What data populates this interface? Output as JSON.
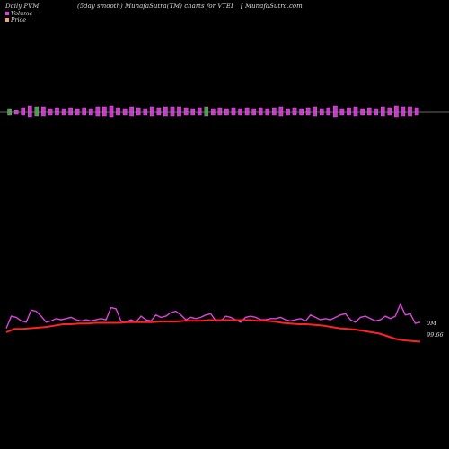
{
  "header": {
    "left": "Daily PVM",
    "middle": "(5day smooth) MunafaSutra(TM) charts for VTEI",
    "right": "[ MunafaSutra.com"
  },
  "legend": [
    {
      "label": "Volume",
      "color": "#e040e0"
    },
    {
      "label": "Price",
      "color": "#f0a080"
    }
  ],
  "labels": {
    "volume_value": "0M",
    "price_value": "99.66"
  },
  "colors": {
    "volume_bar": "#cc33cc",
    "volume_bar_down": "#8833aa",
    "volume_bar_green": "#33aa33",
    "volume_line": "#dd44dd",
    "price_line": "#ff2222",
    "baseline": "#888888"
  },
  "chart_data": {
    "type": "bar",
    "series": [
      {
        "name": "Volume",
        "values": [
          5,
          3,
          6,
          9,
          8,
          7,
          5,
          6,
          5,
          6,
          5,
          6,
          5,
          7,
          8,
          9,
          6,
          5,
          7,
          6,
          5,
          7,
          6,
          8,
          7,
          8,
          6,
          5,
          6,
          7,
          5,
          6,
          5,
          6,
          5,
          6,
          5,
          6,
          5,
          6,
          7,
          5,
          6,
          5,
          6,
          7,
          5,
          6,
          9,
          5,
          6,
          7,
          5,
          6,
          5,
          7,
          6,
          9,
          8,
          7,
          6
        ]
      },
      {
        "name": "Price",
        "values": [
          99.8,
          99.85,
          99.85,
          99.86,
          99.87,
          99.88,
          99.9,
          99.92,
          99.92,
          99.93,
          99.93,
          99.94,
          99.94,
          99.94,
          99.94,
          99.95,
          99.95,
          99.95,
          99.95,
          99.96,
          99.96,
          99.96,
          99.97,
          99.97,
          99.97,
          99.98,
          99.98,
          99.98,
          99.98,
          99.98,
          99.98,
          99.97,
          99.97,
          99.96,
          99.94,
          99.93,
          99.92,
          99.92,
          99.91,
          99.9,
          99.88,
          99.86,
          99.85,
          99.84,
          99.82,
          99.8,
          99.78,
          99.74,
          99.7,
          99.68,
          99.67,
          99.66
        ]
      }
    ],
    "volume_line": [
      7,
      17,
      16,
      13,
      12,
      22,
      21,
      17,
      12,
      13,
      15,
      14,
      15,
      16,
      14,
      13,
      14,
      13,
      14,
      15,
      14,
      24,
      23,
      13,
      12,
      14,
      12,
      17,
      14,
      13,
      18,
      16,
      17,
      20,
      21,
      18,
      14,
      16,
      15,
      16,
      18,
      19,
      13,
      13,
      17,
      16,
      14,
      12,
      16,
      17,
      16,
      14,
      14,
      15,
      15,
      16,
      14,
      13,
      14,
      15,
      13,
      18,
      16,
      14,
      15,
      14,
      16,
      18,
      19,
      14,
      12,
      16,
      17,
      15,
      13,
      14,
      17,
      15,
      17,
      27,
      18,
      19,
      11,
      12
    ]
  }
}
